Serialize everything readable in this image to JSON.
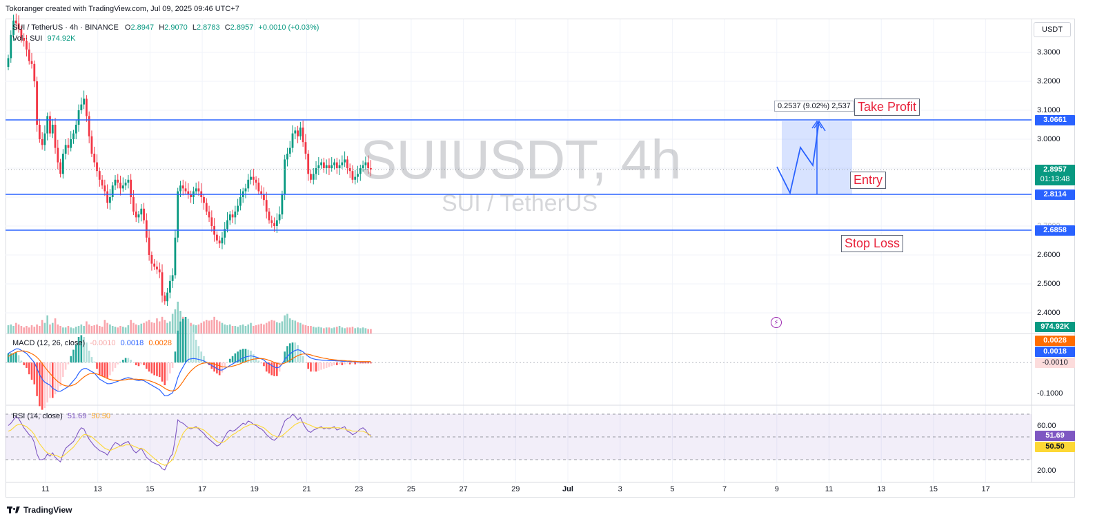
{
  "header": {
    "created_by": "Tokoranger created with TradingView.com, Jul 09, 2025 09:46 UTC+7"
  },
  "watermark": {
    "symbol": "SUIUSDT, 4h",
    "description": "SUI / TetherUS"
  },
  "legend": {
    "symbol": "SUI / TetherUS · 4h · BINANCE",
    "o_label": "O",
    "o": "2.8947",
    "h_label": "H",
    "h": "2.9070",
    "l_label": "L",
    "l": "2.8783",
    "c_label": "C",
    "c": "2.8957",
    "change": "+0.0010 (+0.03%)",
    "vol_label": "Vol · SUI",
    "vol": "974.92K"
  },
  "currency_button": "USDT",
  "annotations": {
    "take_profit": "Take Profit",
    "entry": "Entry",
    "stop_loss": "Stop Loss",
    "measure": "0.2537 (9.02%) 2,537"
  },
  "price_tags": {
    "take_profit": "3.0661",
    "current": "2.8957",
    "countdown": "01:13:48",
    "entry": "2.8114",
    "stop_loss": "2.6858",
    "volume": "974.92K",
    "macd_signal": "0.0028",
    "macd_line": "0.0018",
    "macd_hist": "-0.0010",
    "rsi": "51.69",
    "rsi_ma": "50.50"
  },
  "macd_legend": {
    "label": "MACD (12, 26, close)",
    "hist": "-0.0010",
    "macd": "0.0018",
    "signal": "0.0028"
  },
  "rsi_legend": {
    "label": "RSI (14, close)",
    "rsi": "51.69",
    "ma": "50.50"
  },
  "price_axis": [
    "3.3000",
    "3.2000",
    "3.1000",
    "3.0000",
    "2.4000",
    "2.5000",
    "2.6000",
    "2.7000"
  ],
  "macd_axis": [
    "-0.1000"
  ],
  "rsi_axis": [
    "60.00",
    "20.00"
  ],
  "x_axis": [
    "11",
    "13",
    "15",
    "17",
    "19",
    "21",
    "23",
    "25",
    "27",
    "29",
    "Jul",
    "3",
    "5",
    "7",
    "9",
    "11",
    "13",
    "15",
    "17"
  ],
  "footer": {
    "brand": "TradingView"
  },
  "colors": {
    "up": "#089981",
    "down": "#f23645",
    "level_line": "#2962ff",
    "macd": "#2962ff",
    "signal": "#ff6d00",
    "rsi": "#7e57c2",
    "rsi_ma": "#fdd835",
    "annotation_text": "#e8233b"
  },
  "chart_data": {
    "type": "candlestick",
    "title": "SUIUSDT, 4h",
    "ylim": [
      2.37,
      3.38
    ],
    "levels": {
      "take_profit": 3.0661,
      "entry": 2.8114,
      "stop_loss": 2.6858,
      "current": 2.8957
    },
    "price_closes": [
      3.28,
      3.36,
      3.41,
      3.4,
      3.38,
      3.35,
      3.34,
      3.31,
      3.27,
      3.26,
      3.2,
      3.05,
      3.0,
      2.98,
      3.02,
      3.08,
      3.02,
      3.05,
      2.97,
      2.92,
      2.88,
      2.95,
      2.98,
      2.97,
      3.0,
      3.02,
      3.05,
      3.1,
      3.12,
      3.14,
      3.08,
      3.01,
      2.95,
      2.92,
      2.89,
      2.86,
      2.84,
      2.82,
      2.78,
      2.8,
      2.84,
      2.86,
      2.85,
      2.83,
      2.84,
      2.85,
      2.86,
      2.8,
      2.75,
      2.73,
      2.74,
      2.76,
      2.72,
      2.66,
      2.6,
      2.57,
      2.56,
      2.55,
      2.54,
      2.46,
      2.44,
      2.47,
      2.51,
      2.53,
      2.66,
      2.82,
      2.84,
      2.83,
      2.82,
      2.81,
      2.8,
      2.82,
      2.83,
      2.82,
      2.8,
      2.78,
      2.75,
      2.73,
      2.7,
      2.67,
      2.65,
      2.64,
      2.66,
      2.69,
      2.72,
      2.74,
      2.73,
      2.75,
      2.77,
      2.8,
      2.82,
      2.83,
      2.86,
      2.87,
      2.86,
      2.85,
      2.82,
      2.81,
      2.79,
      2.75,
      2.72,
      2.71,
      2.7,
      2.72,
      2.74,
      2.81,
      2.93,
      2.95,
      2.97,
      3.02,
      3.03,
      3.01,
      3.04,
      2.99,
      2.95,
      2.88,
      2.86,
      2.88,
      2.9,
      2.91,
      2.92,
      2.9,
      2.91,
      2.9,
      2.91,
      2.92,
      2.9,
      2.91,
      2.92,
      2.93,
      2.9,
      2.89,
      2.86,
      2.87,
      2.88,
      2.9,
      2.91,
      2.92,
      2.9,
      2.8957
    ],
    "volume": [
      0.55,
      0.6,
      0.5,
      0.7,
      0.6,
      0.5,
      0.4,
      0.5,
      0.4,
      0.55,
      0.45,
      0.6,
      0.5,
      0.9,
      0.7,
      1.2,
      0.6,
      0.7,
      1.0,
      0.6,
      0.5,
      0.4,
      0.4,
      0.5,
      0.4,
      0.35,
      0.45,
      0.5,
      0.6,
      0.5,
      0.8,
      0.6,
      0.5,
      0.55,
      0.6,
      0.5,
      0.45,
      0.9,
      0.7,
      0.6,
      0.5,
      0.45,
      0.4,
      0.5,
      0.45,
      0.4,
      0.55,
      0.9,
      0.7,
      0.6,
      0.55,
      0.65,
      0.7,
      0.8,
      0.9,
      0.75,
      0.7,
      1.0,
      0.8,
      1.1,
      0.9,
      0.7,
      0.8,
      1.3,
      1.6,
      2.1,
      1.5,
      1.1,
      0.9,
      0.8,
      0.7,
      0.6,
      0.55,
      0.6,
      0.7,
      0.8,
      0.9,
      0.85,
      0.9,
      1.1,
      0.9,
      0.8,
      0.7,
      0.6,
      0.55,
      0.6,
      0.5,
      0.5,
      0.45,
      0.55,
      0.6,
      0.5,
      0.6,
      0.7,
      0.5,
      0.55,
      0.6,
      0.65,
      0.6,
      0.7,
      0.8,
      0.9,
      0.85,
      0.75,
      0.7,
      0.8,
      1.2,
      1.3,
      1.0,
      0.9,
      0.85,
      0.75,
      0.7,
      0.6,
      0.55,
      0.5,
      0.5,
      0.45,
      0.4,
      0.45,
      0.4,
      0.35,
      0.4,
      0.4,
      0.35,
      0.4,
      0.45,
      0.5,
      0.4,
      0.35,
      0.4,
      0.4,
      0.45,
      0.35,
      0.4,
      0.35,
      0.4,
      0.35,
      0.3,
      0.3
    ],
    "macd": [
      0.03,
      0.035,
      0.04,
      0.045,
      0.045,
      0.04,
      0.035,
      0.03,
      0.02,
      0.01,
      0.0,
      -0.02,
      -0.04,
      -0.055,
      -0.065,
      -0.07,
      -0.075,
      -0.085,
      -0.09,
      -0.095,
      -0.095,
      -0.09,
      -0.085,
      -0.08,
      -0.07,
      -0.06,
      -0.05,
      -0.035,
      -0.025,
      -0.02,
      -0.02,
      -0.025,
      -0.03,
      -0.035,
      -0.045,
      -0.055,
      -0.06,
      -0.065,
      -0.07,
      -0.07,
      -0.068,
      -0.065,
      -0.062,
      -0.058,
      -0.055,
      -0.052,
      -0.05,
      -0.052,
      -0.055,
      -0.058,
      -0.06,
      -0.058,
      -0.06,
      -0.065,
      -0.07,
      -0.075,
      -0.08,
      -0.085,
      -0.09,
      -0.1,
      -0.11,
      -0.11,
      -0.105,
      -0.1,
      -0.08,
      -0.05,
      -0.03,
      -0.015,
      0.0,
      0.01,
      0.012,
      0.013,
      0.012,
      0.01,
      0.008,
      0.005,
      0.0,
      -0.005,
      -0.01,
      -0.015,
      -0.02,
      -0.025,
      -0.025,
      -0.02,
      -0.015,
      -0.01,
      -0.005,
      0.0,
      0.005,
      0.01,
      0.015,
      0.018,
      0.02,
      0.022,
      0.02,
      0.018,
      0.015,
      0.012,
      0.008,
      0.0,
      -0.005,
      -0.01,
      -0.015,
      -0.018,
      -0.015,
      -0.005,
      0.01,
      0.02,
      0.028,
      0.035,
      0.04,
      0.042,
      0.04,
      0.035,
      0.028,
      0.02,
      0.015,
      0.012,
      0.01,
      0.009,
      0.008,
      0.007,
      0.007,
      0.006,
      0.006,
      0.006,
      0.005,
      0.005,
      0.004,
      0.004,
      0.004,
      0.003,
      0.003,
      0.002,
      0.002,
      0.002,
      0.002,
      0.0018,
      0.0018,
      0.0018
    ],
    "signal": [
      0.02,
      0.025,
      0.03,
      0.034,
      0.037,
      0.038,
      0.038,
      0.036,
      0.033,
      0.029,
      0.024,
      0.017,
      0.008,
      -0.003,
      -0.015,
      -0.026,
      -0.036,
      -0.046,
      -0.055,
      -0.063,
      -0.069,
      -0.074,
      -0.077,
      -0.078,
      -0.077,
      -0.074,
      -0.07,
      -0.063,
      -0.055,
      -0.048,
      -0.042,
      -0.038,
      -0.036,
      -0.036,
      -0.038,
      -0.041,
      -0.045,
      -0.049,
      -0.053,
      -0.056,
      -0.058,
      -0.059,
      -0.06,
      -0.059,
      -0.058,
      -0.057,
      -0.055,
      -0.055,
      -0.055,
      -0.055,
      -0.056,
      -0.056,
      -0.057,
      -0.058,
      -0.06,
      -0.063,
      -0.066,
      -0.07,
      -0.074,
      -0.079,
      -0.085,
      -0.09,
      -0.093,
      -0.094,
      -0.092,
      -0.085,
      -0.075,
      -0.063,
      -0.05,
      -0.038,
      -0.028,
      -0.02,
      -0.013,
      -0.008,
      -0.004,
      -0.002,
      -0.001,
      -0.002,
      -0.003,
      -0.005,
      -0.008,
      -0.011,
      -0.014,
      -0.015,
      -0.015,
      -0.014,
      -0.012,
      -0.01,
      -0.007,
      -0.004,
      0.0,
      0.003,
      0.006,
      0.009,
      0.011,
      0.012,
      0.013,
      0.013,
      0.012,
      0.01,
      0.007,
      0.004,
      0.0,
      -0.003,
      -0.005,
      -0.005,
      -0.002,
      0.002,
      0.007,
      0.013,
      0.018,
      0.023,
      0.026,
      0.028,
      0.028,
      0.027,
      0.025,
      0.022,
      0.02,
      0.018,
      0.016,
      0.014,
      0.013,
      0.011,
      0.01,
      0.009,
      0.008,
      0.007,
      0.007,
      0.006,
      0.005,
      0.005,
      0.004,
      0.004,
      0.003,
      0.003,
      0.003,
      0.0028,
      0.0028,
      0.0028
    ],
    "rsi": [
      60,
      62,
      65,
      68,
      66,
      62,
      58,
      55,
      52,
      50,
      45,
      35,
      30,
      30,
      31,
      35,
      33,
      36,
      32,
      30,
      28,
      35,
      40,
      42,
      44,
      46,
      50,
      55,
      58,
      57,
      52,
      48,
      45,
      42,
      40,
      38,
      37,
      36,
      34,
      38,
      42,
      45,
      44,
      42,
      44,
      45,
      46,
      42,
      38,
      36,
      38,
      40,
      36,
      32,
      30,
      28,
      27,
      26,
      25,
      22,
      21,
      26,
      32,
      35,
      48,
      65,
      63,
      62,
      60,
      58,
      57,
      58,
      59,
      57,
      55,
      53,
      50,
      48,
      46,
      44,
      42,
      43,
      46,
      50,
      54,
      56,
      55,
      56,
      58,
      60,
      62,
      61,
      64,
      63,
      61,
      60,
      58,
      57,
      55,
      52,
      50,
      48,
      47,
      49,
      52,
      58,
      64,
      66,
      67,
      70,
      68,
      65,
      67,
      62,
      58,
      55,
      54,
      56,
      57,
      58,
      59,
      57,
      58,
      57,
      58,
      59,
      56,
      57,
      58,
      59,
      55,
      54,
      52,
      53,
      55,
      57,
      58,
      56,
      52,
      51.69
    ],
    "rsi_ma": [
      55,
      56,
      58,
      60,
      61,
      61,
      60,
      59,
      57,
      55,
      52,
      48,
      44,
      41,
      38,
      36,
      35,
      34,
      34,
      33,
      32,
      33,
      35,
      37,
      39,
      41,
      44,
      47,
      50,
      52,
      52,
      51,
      50,
      48,
      46,
      44,
      42,
      40,
      39,
      38,
      39,
      40,
      41,
      42,
      42,
      43,
      43,
      43,
      42,
      41,
      40,
      40,
      39,
      37,
      35,
      33,
      31,
      29,
      27,
      26,
      25,
      26,
      28,
      30,
      35,
      42,
      48,
      53,
      56,
      58,
      58,
      58,
      58,
      58,
      57,
      56,
      54,
      52,
      50,
      48,
      46,
      45,
      45,
      46,
      48,
      50,
      52,
      53,
      55,
      56,
      58,
      59,
      60,
      61,
      61,
      61,
      60,
      59,
      58,
      56,
      54,
      52,
      51,
      50,
      50,
      51,
      53,
      55,
      57,
      59,
      61,
      62,
      63,
      63,
      62,
      61,
      60,
      59,
      58,
      58,
      58,
      58,
      58,
      58,
      58,
      58,
      58,
      58,
      57,
      57,
      56,
      56,
      55,
      55,
      55,
      55,
      55,
      54,
      53,
      50.5
    ]
  }
}
